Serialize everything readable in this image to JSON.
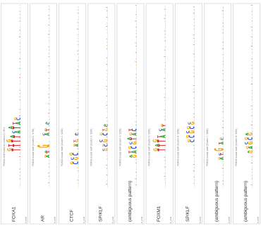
{
  "figure": {
    "panels": [
      {
        "name": "FOXA1",
        "title": "FOXA1 motif found at Location 1 / 35 h",
        "axis_label": "b_prob"
      },
      {
        "name": "AR",
        "title": "FOXA1 bound motif (Cluster 1 / 1706)",
        "axis_label": "b_prob"
      },
      {
        "name": "CTCF",
        "title": "FOXA1 bound motif (Cluster 2 / 1200)",
        "axis_label": "b_prob"
      },
      {
        "name": "SP/KLF",
        "title": "FOXA1 bound motif (Cluster 3 / 1004)",
        "axis_label": "b_prob"
      },
      {
        "name": "(ambiguous pattern)",
        "title": "FOXA1 bound motif (Cluster 4 / 1203)",
        "axis_label": "b_prob"
      },
      {
        "name": "FOXM1",
        "title": "FOXA1 bound motif (Cluster 5 / 1002)",
        "axis_label": "b_prob"
      },
      {
        "name": "SP/KLF",
        "title": "FOXA1 bound motif (Cluster 6 / 1001)",
        "axis_label": "b_prob"
      },
      {
        "name": "(ambiguous pattern)",
        "title": "FOXA1 bound motif (Cluster 7 / 1000)",
        "axis_label": "b_prob"
      },
      {
        "name": "(ambiguous pattern)",
        "title": "FOXA1 bound motif (Cluster 8 / 1002)",
        "axis_label": "b_prob"
      }
    ]
  },
  "colors": {
    "A": "#2e9e2e",
    "C": "#2b4fc7",
    "G": "#f2a100",
    "T": "#d8262c",
    "frame": "#bfbfbf",
    "axis": "#9a9a9a"
  }
}
